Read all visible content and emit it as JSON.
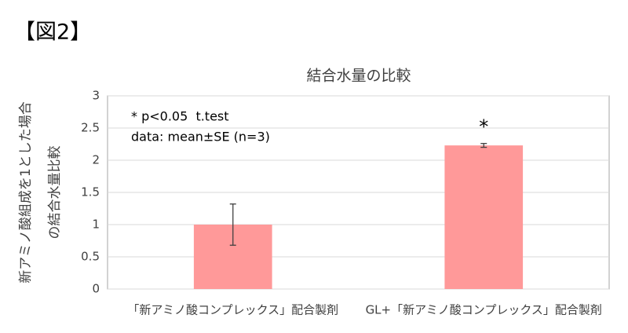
{
  "figure_label": "【図2】",
  "chart_data": {
    "type": "bar",
    "title": "結合水量の比較",
    "y_label": [
      "新アミノ酸組成を1とした場合",
      "の結合水量比較"
    ],
    "categories": [
      "「新アミノ酸コンプレックス」配合製剤",
      "GL+「新アミノ酸コンプレックス」配合製剤"
    ],
    "values": [
      1,
      2.23
    ],
    "errors": [
      0.32,
      0.03
    ],
    "color": "#ff9999",
    "ylim": [
      0,
      3
    ],
    "yticks": [
      0,
      0.5,
      1,
      1.5,
      2,
      2.5,
      3
    ],
    "grid": true,
    "annotations": [
      "* p<0.05  t.test",
      "data: mean±SE (n=3)",
      "*"
    ]
  }
}
